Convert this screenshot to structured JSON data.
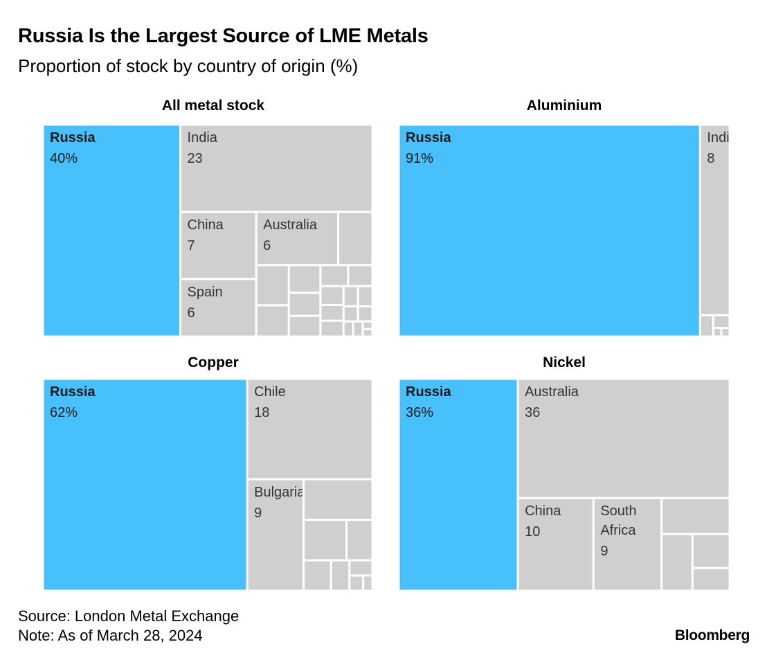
{
  "title": "Russia Is the Largest Source of LME Metals",
  "subtitle": "Proportion of stock by country of origin (%)",
  "source": "Source: London Metal Exchange",
  "note": "Note: As of March 28, 2024",
  "brand": "Bloomberg",
  "colors": {
    "highlight": "#47c0fb",
    "other": "#cfcfcf",
    "border": "#ffffff"
  },
  "chart_data": [
    {
      "type": "treemap",
      "title": "All metal stock",
      "unit": "%",
      "cells": [
        {
          "label": "Russia",
          "value": 40,
          "display": "40%",
          "highlight": true
        },
        {
          "label": "India",
          "value": 23,
          "display": "23"
        },
        {
          "label": "China",
          "value": 7,
          "display": "7"
        },
        {
          "label": "Spain",
          "value": 6,
          "display": "6"
        },
        {
          "label": "Australia",
          "value": 6,
          "display": "6"
        },
        {
          "label": "",
          "value": 2.5
        },
        {
          "label": "",
          "value": 1.8
        },
        {
          "label": "",
          "value": 1.4
        },
        {
          "label": "",
          "value": 1.2
        },
        {
          "label": "",
          "value": 1.0
        },
        {
          "label": "",
          "value": 0.9
        },
        {
          "label": "",
          "value": 0.8
        },
        {
          "label": "",
          "value": 0.7
        },
        {
          "label": "",
          "value": 0.6
        },
        {
          "label": "",
          "value": 0.5
        },
        {
          "label": "",
          "value": 0.5
        },
        {
          "label": "",
          "value": 0.4
        },
        {
          "label": "",
          "value": 0.4
        },
        {
          "label": "",
          "value": 0.3
        },
        {
          "label": "",
          "value": 0.3
        },
        {
          "label": "",
          "value": 0.2
        },
        {
          "label": "",
          "value": 0.2
        },
        {
          "label": "",
          "value": 0.1
        },
        {
          "label": "",
          "value": 0.1
        }
      ]
    },
    {
      "type": "treemap",
      "title": "Aluminium",
      "unit": "%",
      "cells": [
        {
          "label": "Russia",
          "value": 91,
          "display": "91%",
          "highlight": true
        },
        {
          "label": "India",
          "value": 8,
          "display": "8"
        },
        {
          "label": "",
          "value": 0.4
        },
        {
          "label": "",
          "value": 0.3
        },
        {
          "label": "",
          "value": 0.1
        },
        {
          "label": "",
          "value": 0.1
        }
      ]
    },
    {
      "type": "treemap",
      "title": "Copper",
      "unit": "%",
      "cells": [
        {
          "label": "Russia",
          "value": 62,
          "display": "62%",
          "highlight": true
        },
        {
          "label": "Chile",
          "value": 18,
          "display": "18"
        },
        {
          "label": "Bulgaria",
          "value": 9,
          "display": "9"
        },
        {
          "label": "",
          "value": 4
        },
        {
          "label": "",
          "value": 2.5
        },
        {
          "label": "",
          "value": 1.5
        },
        {
          "label": "",
          "value": 1.2
        },
        {
          "label": "",
          "value": 0.8
        },
        {
          "label": "",
          "value": 0.5
        },
        {
          "label": "",
          "value": 0.3
        },
        {
          "label": "",
          "value": 0.2
        }
      ]
    },
    {
      "type": "treemap",
      "title": "Nickel",
      "unit": "%",
      "cells": [
        {
          "label": "Russia",
          "value": 36,
          "display": "36%",
          "highlight": true
        },
        {
          "label": "Australia",
          "value": 36,
          "display": "36"
        },
        {
          "label": "China",
          "value": 10,
          "display": "10"
        },
        {
          "label": "South Africa",
          "value": 9,
          "display": "9"
        },
        {
          "label": "",
          "value": 3.5
        },
        {
          "label": "",
          "value": 2.5
        },
        {
          "label": "",
          "value": 1.8
        },
        {
          "label": "",
          "value": 1.2
        }
      ]
    }
  ]
}
